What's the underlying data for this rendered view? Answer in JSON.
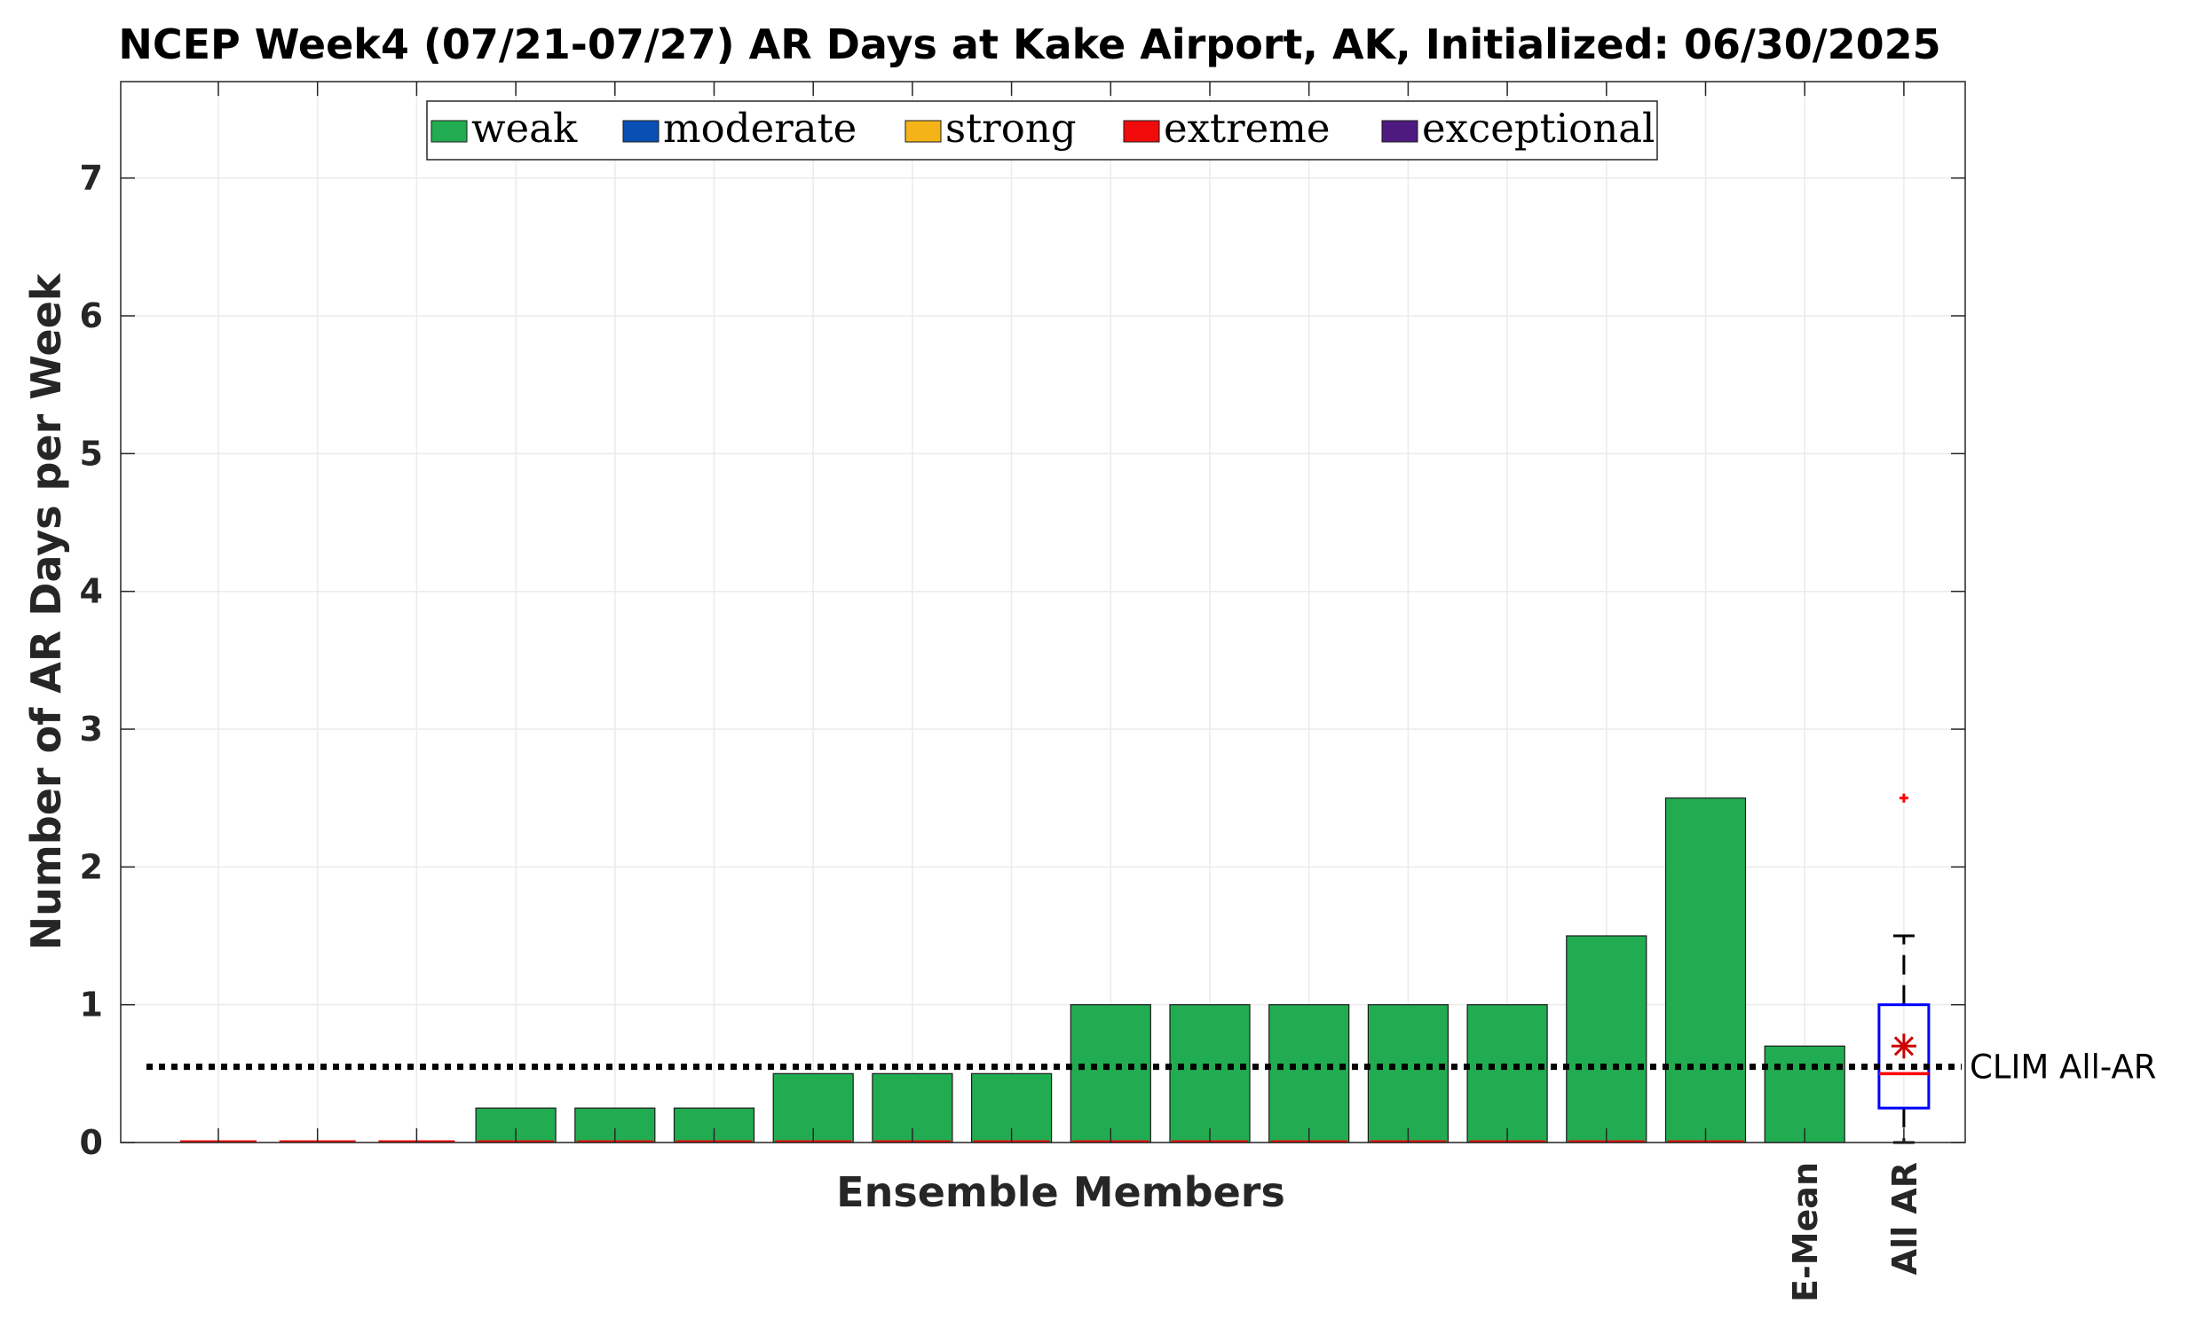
{
  "chart_data": {
    "type": "bar",
    "title": "NCEP Week4 (07/21-07/27) AR Days at Kake Airport, AK, Initialized: 06/30/2025",
    "xlabel": "Ensemble Members",
    "ylabel": "Number of AR Days per Week",
    "ylim": [
      0,
      7.7
    ],
    "yticks": [
      "0",
      "1",
      "2",
      "3",
      "4",
      "5",
      "6",
      "7"
    ],
    "grid": true,
    "legend_position": "top",
    "legend": [
      {
        "label": "weak",
        "color": "#22ac52"
      },
      {
        "label": "moderate",
        "color": "#0a4fb4"
      },
      {
        "label": "strong",
        "color": "#f4b418"
      },
      {
        "label": "extreme",
        "color": "#f20b0b"
      },
      {
        "label": "exceptional",
        "color": "#4f1a80"
      }
    ],
    "members": {
      "values": [
        0,
        0,
        0,
        0.25,
        0.25,
        0.25,
        0.5,
        0.5,
        0.5,
        1,
        1,
        1,
        1,
        1,
        1.5,
        2.5
      ],
      "color": "#22ac52"
    },
    "emean": {
      "label": "E-Mean",
      "value": 0.7
    },
    "all_ar": {
      "label": "All AR",
      "whisker_low": 0,
      "q1": 0.25,
      "median": 0.5,
      "q3": 1,
      "whisker_high": 1.5,
      "mean": 0.7,
      "outliers": [
        2.5
      ],
      "box_color": "#0000ff",
      "median_color": "#ff0000"
    },
    "clim": {
      "label": "CLIM All-AR",
      "value": 0.55
    }
  }
}
